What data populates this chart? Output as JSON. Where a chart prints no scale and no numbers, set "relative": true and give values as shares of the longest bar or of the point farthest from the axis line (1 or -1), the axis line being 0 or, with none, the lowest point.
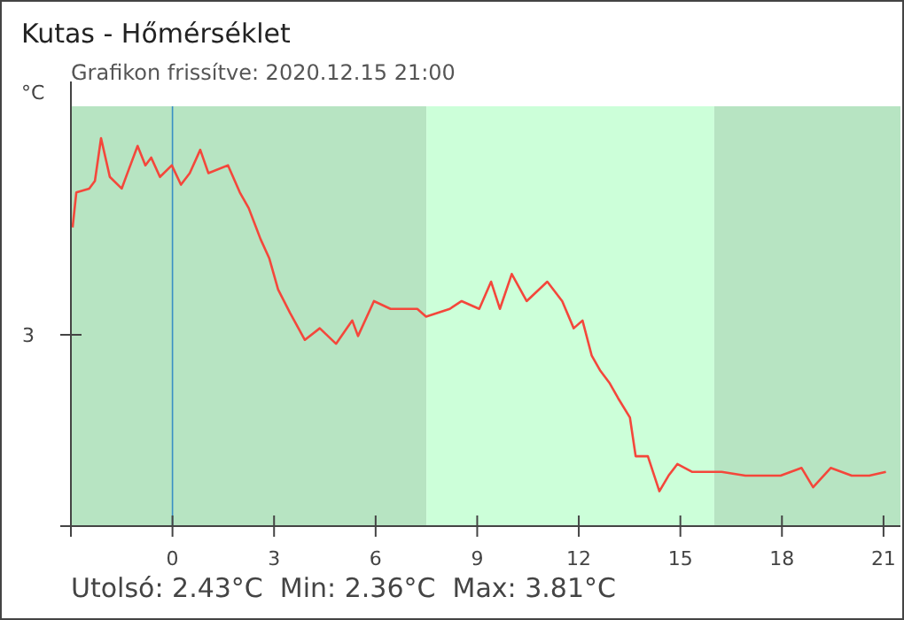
{
  "chart_data": {
    "type": "line",
    "title": "Kutas - Hőmérséklet",
    "subtitle": "Grafikon frissítve: 2020.12.15 21:00",
    "ylabel": "°C",
    "annotations": [
      "Utolsó: 2.43°C  Min: 2.36°C  Max: 3.81°C",
      "3"
    ],
    "relative": true,
    "xlim": [
      -3,
      21.5
    ],
    "xticks": [
      {
        "value": -3,
        "label": null
      },
      0,
      3,
      6,
      9,
      12,
      15,
      18,
      21
    ],
    "bands": [
      {
        "axis": "x",
        "from": -3,
        "to": 7.5,
        "color": "#b7e4c2"
      },
      {
        "axis": "x",
        "from": 7.5,
        "to": 16,
        "color": "#ccffd9"
      },
      {
        "axis": "x",
        "from": 16,
        "to": 21.5,
        "color": "#b7e4c2"
      }
    ],
    "ref_lines": [
      {
        "axis": "x",
        "value": 0,
        "color": "#3a8fc4"
      }
    ],
    "series": [
      {
        "color": "#f4473b",
        "x": [
          -2.95,
          -2.84,
          -2.46,
          -2.29,
          -2.11,
          -1.85,
          -1.5,
          -1.33,
          -1.03,
          -0.8,
          -0.63,
          -0.37,
          -0.02,
          0.25,
          0.51,
          0.82,
          1.06,
          1.64,
          1.99,
          2.25,
          2.6,
          2.86,
          3.12,
          3.47,
          3.91,
          4.35,
          4.83,
          5.31,
          5.48,
          5.95,
          6.44,
          7.23,
          7.49,
          8.19,
          8.54,
          9.06,
          9.41,
          9.67,
          10.02,
          10.46,
          11.07,
          11.51,
          11.85,
          12.11,
          12.38,
          12.64,
          12.9,
          13.16,
          13.51,
          13.68,
          14.04,
          14.38,
          14.65,
          14.91,
          15.34,
          16.22,
          16.92,
          17.96,
          18.58,
          18.92,
          19.44,
          20.06,
          20.58,
          21.07
        ],
        "values": [
          0.77,
          0.86,
          0.87,
          0.89,
          1,
          0.9,
          0.87,
          0.91,
          0.98,
          0.93,
          0.95,
          0.9,
          0.93,
          0.88,
          0.91,
          0.97,
          0.91,
          0.93,
          0.86,
          0.82,
          0.74,
          0.69,
          0.61,
          0.55,
          0.48,
          0.51,
          0.47,
          0.53,
          0.49,
          0.58,
          0.56,
          0.56,
          0.54,
          0.56,
          0.58,
          0.56,
          0.63,
          0.56,
          0.65,
          0.58,
          0.63,
          0.58,
          0.51,
          0.53,
          0.44,
          0.4,
          0.37,
          0.33,
          0.28,
          0.18,
          0.18,
          0.09,
          0.13,
          0.16,
          0.14,
          0.14,
          0.13,
          0.13,
          0.15,
          0.1,
          0.15,
          0.13,
          0.13,
          0.14
        ]
      }
    ]
  }
}
